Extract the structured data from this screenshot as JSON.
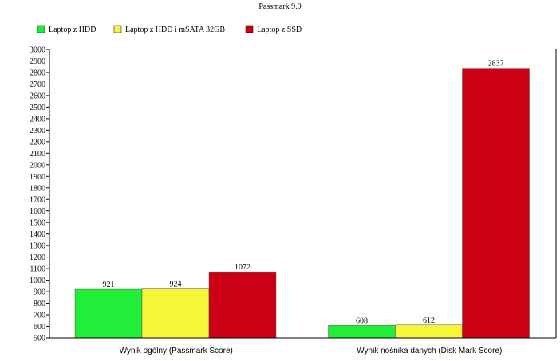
{
  "chart_data": {
    "type": "bar",
    "title": "Passmark 9.0",
    "xlabel": "",
    "ylabel": "",
    "categories": [
      "Wynik ogólny (Passmark Score)",
      "Wynik nośnika danych (Disk Mark Score)"
    ],
    "series": [
      {
        "name": "Laptop z HDD",
        "color": "#22ee3a",
        "values": [
          921,
          608
        ]
      },
      {
        "name": "Laptop z HDD i mSATA 32GB",
        "color": "#f5f53a",
        "values": [
          924,
          612
        ]
      },
      {
        "name": "Laptop z SSD",
        "color": "#cc0014",
        "values": [
          1072,
          2837
        ]
      }
    ],
    "ylim": [
      500,
      3000
    ],
    "ytick_step": 100,
    "grid": false,
    "legend": "top-left"
  }
}
